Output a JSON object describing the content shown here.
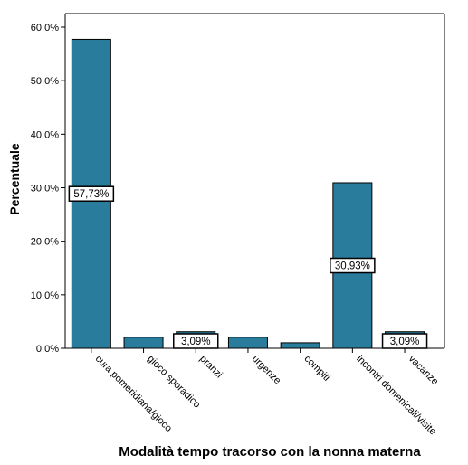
{
  "chart_data": {
    "type": "bar",
    "xlabel": "Modalità tempo tracorso con la nonna materna",
    "ylabel": "Percentuale",
    "ylim": [
      0,
      60
    ],
    "yticks": [
      "0,0%",
      "10,0%",
      "20,0%",
      "30,0%",
      "40,0%",
      "50,0%",
      "60,0%"
    ],
    "categories": [
      "cura pomeridiana/gioco",
      "gioco sporadico",
      "pranzi",
      "urgenze",
      "compiti",
      "incontri domenicali/visite",
      "vacanze"
    ],
    "values": [
      57.73,
      2.06,
      3.09,
      2.06,
      1.03,
      30.93,
      3.09
    ],
    "data_labels": [
      "57,73%",
      "",
      "3,09%",
      "",
      "",
      "30,93%",
      "3,09%"
    ],
    "grid": false,
    "colors": {
      "bar": "#2a7c9c",
      "bar_border": "#000000"
    }
  }
}
